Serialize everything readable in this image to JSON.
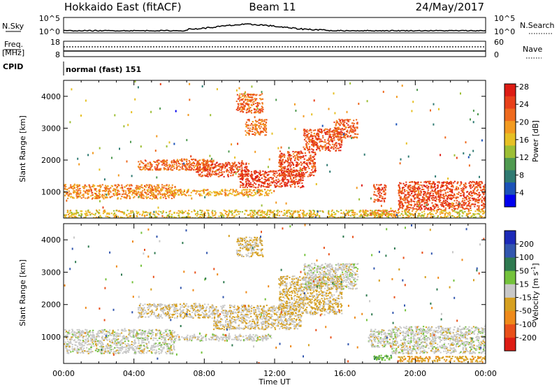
{
  "header": {
    "radar": "Hokkaido East (fitACF)",
    "beam": "Beam 11",
    "date": "24/May/2017"
  },
  "status_panels": {
    "nsky_label": "N.Sky",
    "nsky_ticks": [
      "10^5",
      "10^0"
    ],
    "nsearch_label": "N.Search",
    "nsearch_ticks": [
      "10^5",
      "10^0"
    ],
    "freq_label": "Freq.",
    "freq_unit": "[MHz]",
    "freq_ticks": [
      "18",
      "8"
    ],
    "nave_label": "Nave",
    "nave_ticks": [
      "60",
      "0"
    ],
    "cpid_label": "CPID",
    "cpid_value": "normal (fast) 151"
  },
  "x_axis": {
    "label": "Time UT",
    "ticks": [
      "00:00",
      "04:00",
      "08:00",
      "12:00",
      "16:00",
      "20:00",
      "00:00"
    ]
  },
  "chart_data": [
    {
      "type": "heatmap",
      "name_shown": "",
      "x": "time UT (hours)",
      "x_range": [
        0,
        24
      ],
      "ylabel": "Slant Range [km]",
      "y_range": [
        180,
        4500
      ],
      "y_ticks": [
        1000,
        2000,
        3000,
        4000
      ],
      "colorbar": {
        "label": "Power [dB]",
        "ticks": [
          "4",
          "8",
          "12",
          "16",
          "20",
          "24",
          "28"
        ],
        "colors": [
          "#0000ee",
          "#1b52b8",
          "#2f7a72",
          "#4f9a50",
          "#9cbe34",
          "#e6c024",
          "#f29a20",
          "#ee6a1e",
          "#e8401a",
          "#dd1c14"
        ]
      },
      "regions": [
        {
          "x": [
            0.0,
            6.3
          ],
          "y": [
            800,
            1250
          ],
          "level": 22
        },
        {
          "x": [
            6.0,
            11.8
          ],
          "y": [
            900,
            1100
          ],
          "level": 20
        },
        {
          "x": [
            4.2,
            8.5
          ],
          "y": [
            1700,
            2050
          ],
          "level": 24
        },
        {
          "x": [
            7.5,
            10.5
          ],
          "y": [
            1500,
            1950
          ],
          "level": 26
        },
        {
          "x": [
            10.0,
            13.6
          ],
          "y": [
            1150,
            1700
          ],
          "level": 27
        },
        {
          "x": [
            12.2,
            14.3
          ],
          "y": [
            1500,
            2300
          ],
          "level": 26
        },
        {
          "x": [
            13.6,
            15.8
          ],
          "y": [
            2300,
            3000
          ],
          "level": 26
        },
        {
          "x": [
            15.3,
            16.7
          ],
          "y": [
            2700,
            3300
          ],
          "level": 25
        },
        {
          "x": [
            9.8,
            11.3
          ],
          "y": [
            3500,
            4100
          ],
          "level": 24
        },
        {
          "x": [
            10.3,
            11.5
          ],
          "y": [
            2800,
            3300
          ],
          "level": 23
        },
        {
          "x": [
            17.6,
            18.3
          ],
          "y": [
            700,
            1250
          ],
          "level": 26
        },
        {
          "x": [
            19.0,
            24.0
          ],
          "y": [
            450,
            1350
          ],
          "level": 26
        },
        {
          "x": [
            17.0,
            19.0
          ],
          "y": [
            250,
            450
          ],
          "level": 24
        },
        {
          "x": [
            0.0,
            24.0
          ],
          "y": [
            200,
            450
          ],
          "level": 18
        }
      ]
    },
    {
      "type": "heatmap",
      "name_shown": "",
      "x": "time UT (hours)",
      "x_range": [
        0,
        24
      ],
      "ylabel": "Slant Range [km]",
      "y_range": [
        180,
        4500
      ],
      "y_ticks": [
        1000,
        2000,
        3000,
        4000
      ],
      "colorbar": {
        "label": "Velocity [m s-1]",
        "ticks": [
          "200",
          "100",
          "50",
          "15",
          "-15",
          "-50",
          "-100",
          "-200"
        ],
        "colors": [
          "#1c2ab8",
          "#3256ae",
          "#2f7a50",
          "#74c23c",
          "#c8c8c8",
          "#d6a020",
          "#ee8a1a",
          "#e8501a",
          "#dd1c14"
        ]
      },
      "regions": [
        {
          "x": [
            0.0,
            6.3
          ],
          "y": [
            500,
            1250
          ],
          "velocity": 0
        },
        {
          "x": [
            6.0,
            11.8
          ],
          "y": [
            900,
            1100
          ],
          "velocity": 0
        },
        {
          "x": [
            4.2,
            8.5
          ],
          "y": [
            1600,
            2050
          ],
          "velocity": -10
        },
        {
          "x": [
            8.5,
            13.5
          ],
          "y": [
            1250,
            2000
          ],
          "velocity": -10
        },
        {
          "x": [
            12.2,
            15.8
          ],
          "y": [
            1700,
            2900
          ],
          "velocity": -20
        },
        {
          "x": [
            13.6,
            16.7
          ],
          "y": [
            2500,
            3300
          ],
          "velocity": 0
        },
        {
          "x": [
            9.8,
            11.3
          ],
          "y": [
            3500,
            4100
          ],
          "velocity": -20
        },
        {
          "x": [
            17.3,
            18.6
          ],
          "y": [
            700,
            1250
          ],
          "velocity": 0
        },
        {
          "x": [
            18.6,
            24.0
          ],
          "y": [
            500,
            1350
          ],
          "velocity": 0
        },
        {
          "x": [
            17.5,
            18.6
          ],
          "y": [
            300,
            450
          ],
          "velocity": 40
        },
        {
          "x": [
            19.0,
            24.0
          ],
          "y": [
            250,
            420
          ],
          "velocity": -40
        }
      ]
    }
  ]
}
